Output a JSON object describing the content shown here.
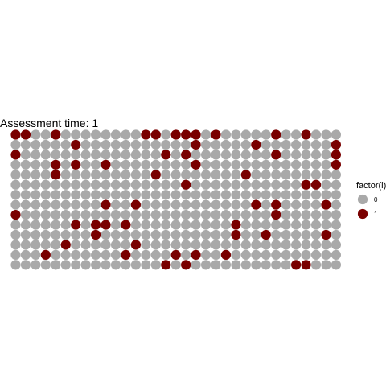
{
  "chart_data": {
    "type": "scatter",
    "title": "Assessment time: 1",
    "xlabel": "",
    "ylabel": "",
    "grid": false,
    "legend_position": "right",
    "colors": {
      "0": "#A9A9A9",
      "1": "#7A0000"
    },
    "legend": {
      "title": "factor(i)",
      "entries": [
        {
          "label": "0",
          "color": "#A9A9A9"
        },
        {
          "label": "1",
          "color": "#7A0000"
        }
      ]
    },
    "grid_columns": 33,
    "grid_rows": 14,
    "rows": [
      [
        1,
        1,
        0,
        0,
        1,
        0,
        0,
        0,
        0,
        0,
        0,
        0,
        0,
        1,
        1,
        0,
        1,
        1,
        1,
        0,
        1,
        0,
        0,
        0,
        0,
        0,
        1,
        0,
        0,
        1,
        0,
        0,
        0
      ],
      [
        0,
        0,
        0,
        0,
        0,
        0,
        1,
        0,
        0,
        0,
        0,
        0,
        0,
        0,
        0,
        0,
        0,
        0,
        1,
        0,
        0,
        0,
        0,
        0,
        1,
        0,
        0,
        0,
        0,
        0,
        0,
        0,
        1
      ],
      [
        1,
        0,
        0,
        0,
        0,
        0,
        0,
        0,
        0,
        0,
        0,
        0,
        0,
        0,
        0,
        1,
        0,
        1,
        0,
        0,
        0,
        0,
        0,
        0,
        0,
        0,
        1,
        0,
        0,
        0,
        0,
        0,
        1
      ],
      [
        0,
        0,
        0,
        0,
        1,
        0,
        1,
        0,
        0,
        1,
        0,
        0,
        0,
        0,
        0,
        0,
        0,
        0,
        1,
        0,
        0,
        0,
        0,
        0,
        0,
        0,
        0,
        0,
        0,
        0,
        0,
        0,
        1
      ],
      [
        0,
        0,
        0,
        0,
        1,
        0,
        0,
        0,
        0,
        0,
        0,
        0,
        0,
        0,
        1,
        0,
        0,
        0,
        0,
        0,
        0,
        0,
        0,
        1,
        0,
        0,
        0,
        0,
        0,
        0,
        0,
        0,
        0
      ],
      [
        0,
        0,
        0,
        0,
        0,
        0,
        0,
        0,
        0,
        0,
        0,
        0,
        0,
        0,
        0,
        0,
        0,
        1,
        0,
        0,
        0,
        0,
        0,
        0,
        0,
        0,
        0,
        0,
        0,
        1,
        1,
        0,
        0
      ],
      [
        0,
        0,
        0,
        0,
        0,
        0,
        0,
        0,
        0,
        0,
        0,
        0,
        0,
        0,
        0,
        0,
        0,
        0,
        0,
        0,
        0,
        0,
        0,
        0,
        0,
        0,
        0,
        0,
        0,
        0,
        0,
        0,
        0
      ],
      [
        0,
        0,
        0,
        0,
        0,
        0,
        0,
        0,
        0,
        1,
        0,
        0,
        1,
        0,
        0,
        0,
        0,
        0,
        0,
        0,
        0,
        0,
        0,
        0,
        1,
        0,
        1,
        0,
        0,
        0,
        0,
        1,
        0
      ],
      [
        1,
        0,
        0,
        0,
        0,
        0,
        0,
        0,
        0,
        0,
        0,
        0,
        0,
        0,
        0,
        0,
        0,
        0,
        0,
        0,
        0,
        0,
        0,
        0,
        0,
        0,
        1,
        0,
        0,
        0,
        0,
        0,
        0
      ],
      [
        0,
        0,
        0,
        0,
        0,
        0,
        1,
        0,
        1,
        1,
        0,
        1,
        0,
        0,
        0,
        0,
        0,
        0,
        0,
        0,
        0,
        0,
        1,
        0,
        0,
        0,
        0,
        0,
        0,
        0,
        0,
        0,
        0
      ],
      [
        0,
        0,
        0,
        0,
        0,
        0,
        0,
        0,
        1,
        0,
        0,
        0,
        0,
        0,
        0,
        0,
        0,
        0,
        0,
        0,
        0,
        0,
        1,
        0,
        0,
        1,
        0,
        0,
        0,
        0,
        0,
        1,
        0
      ],
      [
        0,
        0,
        0,
        0,
        0,
        1,
        0,
        0,
        0,
        0,
        0,
        0,
        1,
        0,
        0,
        0,
        0,
        0,
        0,
        0,
        0,
        0,
        0,
        0,
        0,
        0,
        0,
        0,
        0,
        0,
        0,
        0,
        0
      ],
      [
        0,
        0,
        0,
        1,
        0,
        0,
        0,
        0,
        0,
        0,
        0,
        1,
        0,
        0,
        0,
        0,
        1,
        0,
        1,
        0,
        0,
        1,
        0,
        0,
        0,
        0,
        0,
        0,
        0,
        0,
        0,
        0,
        0
      ],
      [
        0,
        0,
        0,
        0,
        0,
        0,
        0,
        0,
        0,
        0,
        0,
        0,
        0,
        0,
        0,
        1,
        0,
        1,
        0,
        0,
        0,
        0,
        0,
        0,
        0,
        0,
        0,
        0,
        1,
        1,
        0,
        0,
        0
      ]
    ]
  }
}
